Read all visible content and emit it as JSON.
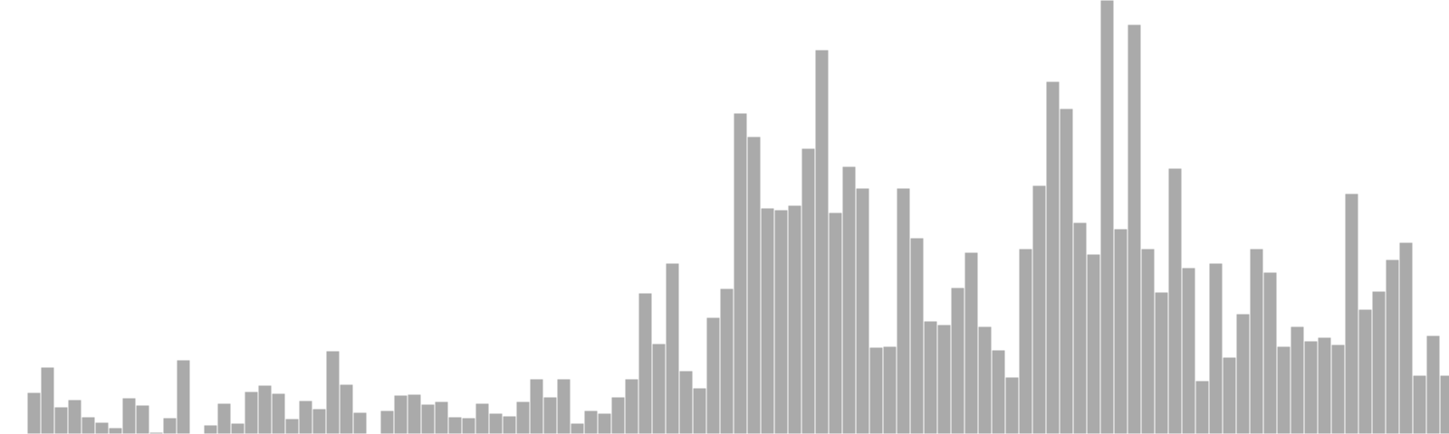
{
  "chart_data": {
    "type": "bar",
    "title": "",
    "xlabel": "",
    "ylabel": "",
    "grid": false,
    "legend": "none",
    "bar_color": "#aaaaaa",
    "ylim": [
      0,
      480
    ],
    "values": [
      0,
      46,
      74,
      30,
      38,
      19,
      13,
      7,
      40,
      32,
      2,
      18,
      82,
      0,
      10,
      34,
      12,
      47,
      54,
      45,
      17,
      37,
      28,
      92,
      55,
      24,
      0,
      26,
      43,
      44,
      33,
      36,
      19,
      18,
      34,
      23,
      20,
      36,
      61,
      41,
      61,
      12,
      26,
      23,
      41,
      61,
      156,
      100,
      189,
      70,
      51,
      129,
      161,
      355,
      329,
      250,
      248,
      253,
      316,
      425,
      245,
      296,
      272,
      96,
      97,
      272,
      217,
      125,
      121,
      162,
      201,
      119,
      93,
      63,
      205,
      275,
      390,
      360,
      234,
      199,
      480,
      227,
      453,
      205,
      157,
      294,
      184,
      59,
      189,
      85,
      133,
      205,
      179,
      97,
      119,
      103,
      107,
      99,
      266,
      138,
      158,
      193,
      212,
      65,
      109,
      65
    ]
  }
}
